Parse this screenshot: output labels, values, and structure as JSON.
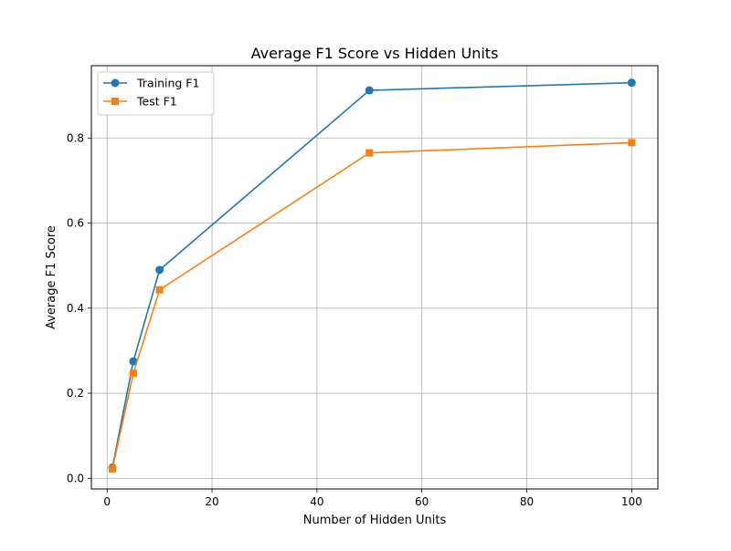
{
  "chart_data": {
    "type": "line",
    "title": "Average F1 Score vs Hidden Units",
    "xlabel": "Number of Hidden Units",
    "ylabel": "Average F1 Score",
    "xlim": [
      -3,
      105
    ],
    "ylim": [
      -0.025,
      0.97
    ],
    "xticks": [
      0,
      20,
      40,
      60,
      80,
      100
    ],
    "yticks": [
      0.0,
      0.2,
      0.4,
      0.6,
      0.8
    ],
    "ytick_labels": [
      "0.0",
      "0.2",
      "0.4",
      "0.6",
      "0.8"
    ],
    "grid": true,
    "legend_position": "top-left",
    "x": [
      1,
      5,
      10,
      50,
      100
    ],
    "series": [
      {
        "name": "Training F1",
        "values": [
          0.025,
          0.275,
          0.49,
          0.912,
          0.93
        ],
        "color": "#1f77b4",
        "marker": "circle"
      },
      {
        "name": "Test F1",
        "values": [
          0.022,
          0.247,
          0.443,
          0.765,
          0.789
        ],
        "color": "#ff7f0e",
        "marker": "square"
      }
    ]
  }
}
